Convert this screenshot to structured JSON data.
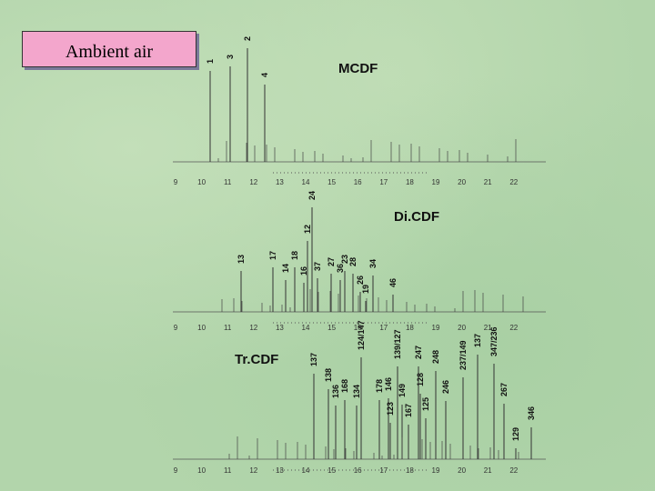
{
  "title": "Ambient air",
  "panels": [
    {
      "name": "MCDF",
      "ticks": [
        "9",
        "10",
        "11",
        "12",
        "13",
        "14",
        "15",
        "16",
        "17",
        "18",
        "19",
        "20",
        "21",
        "22"
      ],
      "peaks": [
        "1",
        "3",
        "2",
        "4"
      ]
    },
    {
      "name": "Di.CDF",
      "ticks": [
        "9",
        "10",
        "11",
        "12",
        "13",
        "14",
        "15",
        "16",
        "17",
        "18",
        "19",
        "20",
        "21",
        "22"
      ],
      "peaks": [
        "24",
        "12",
        "13",
        "17",
        "18",
        "14",
        "16",
        "37",
        "27",
        "36",
        "23",
        "28",
        "26",
        "19",
        "34",
        "46"
      ]
    },
    {
      "name": "Tr.CDF",
      "ticks": [
        "9",
        "10",
        "11",
        "12",
        "13",
        "14",
        "15",
        "16",
        "17",
        "18",
        "19",
        "20",
        "21",
        "22"
      ],
      "peaks": [
        "137",
        "124/147",
        "138",
        "136",
        "168",
        "134",
        "178",
        "146",
        "123",
        "139/127",
        "149",
        "128",
        "167",
        "247",
        "125",
        "248",
        "246",
        "237/149",
        "137",
        "347/236",
        "267",
        "129",
        "346"
      ]
    }
  ]
}
